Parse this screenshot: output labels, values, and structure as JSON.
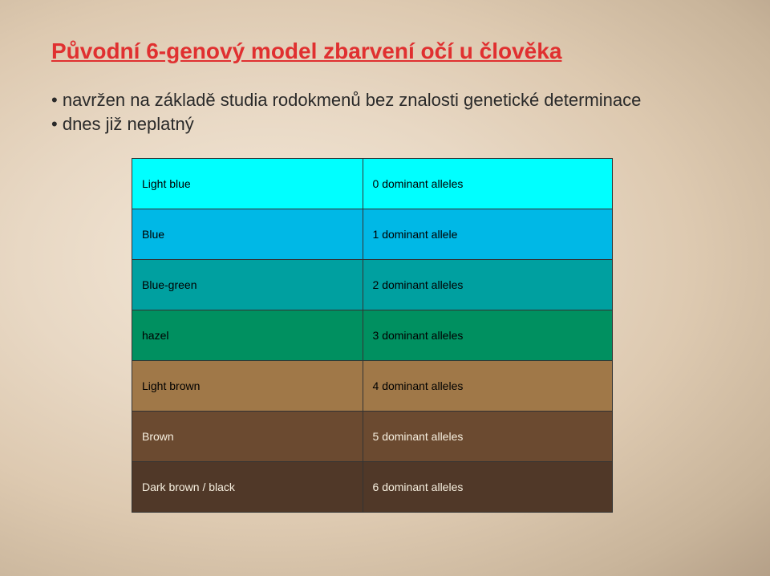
{
  "title": "Původní 6-genový model zbarvení očí u člověka",
  "bullets": [
    "navržen na základě studia rodokmenů bez znalosti genetické determinace",
    "dnes již neplatný"
  ],
  "table": {
    "rows": [
      {
        "label": "Light blue",
        "value": "0 dominant alleles",
        "bg": "#00ffff",
        "text": "#000000"
      },
      {
        "label": "Blue",
        "value": "1 dominant allele",
        "bg": "#00b8e6",
        "text": "#000000"
      },
      {
        "label": "Blue-green",
        "value": "2 dominant alleles",
        "bg": "#00a0a0",
        "text": "#000000"
      },
      {
        "label": "hazel",
        "value": "3 dominant alleles",
        "bg": "#009060",
        "text": "#000000"
      },
      {
        "label": "Light brown",
        "value": "4 dominant alleles",
        "bg": "#a07848",
        "text": "#000000"
      },
      {
        "label": "Brown",
        "value": "5 dominant alleles",
        "bg": "#6b4a30",
        "text": "#f7f0e0"
      },
      {
        "label": "Dark brown / black",
        "value": "6 dominant alleles",
        "bg": "#503828",
        "text": "#f7f0e0"
      }
    ]
  }
}
